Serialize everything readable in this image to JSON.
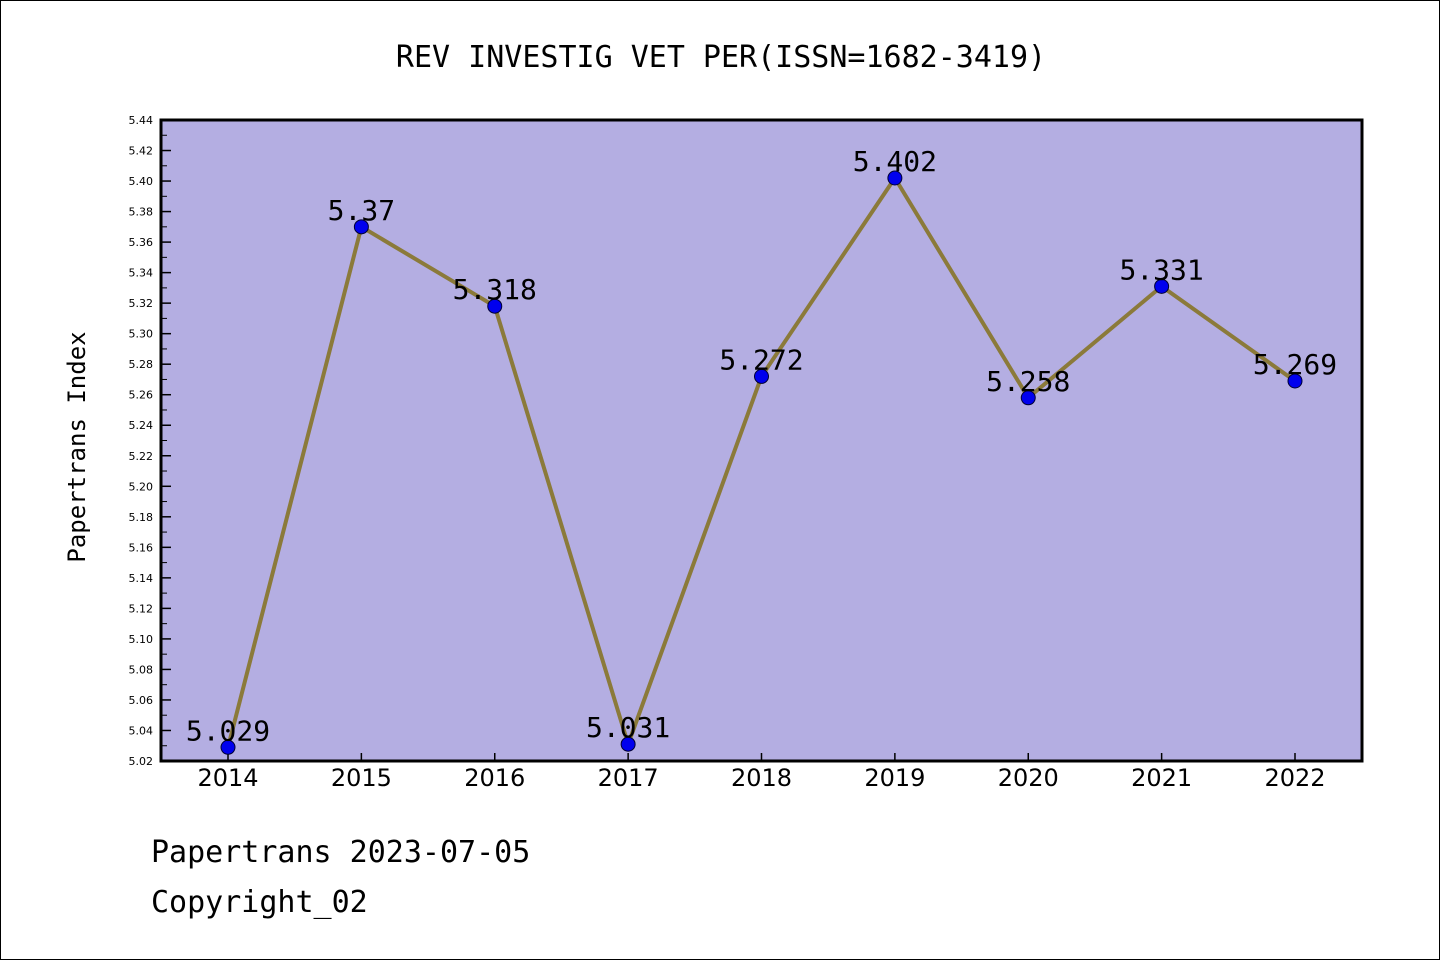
{
  "chart_data": {
    "type": "line",
    "title": "REV INVESTIG VET PER(ISSN=1682-3419)",
    "xlabel": "",
    "ylabel": "Papertrans Index",
    "categories": [
      "2014",
      "2015",
      "2016",
      "2017",
      "2018",
      "2019",
      "2020",
      "2021",
      "2022"
    ],
    "values": [
      5.029,
      5.37,
      5.318,
      5.031,
      5.272,
      5.402,
      5.258,
      5.331,
      5.269
    ],
    "data_labels": [
      "5.029",
      "5.37",
      "5.318",
      "5.031",
      "5.272",
      "5.402",
      "5.258",
      "5.331",
      "5.269"
    ],
    "ylim": [
      5.02,
      5.44
    ],
    "yticks": [
      "5.02",
      "5.04",
      "5.06",
      "5.08",
      "5.10",
      "5.12",
      "5.14",
      "5.16",
      "5.18",
      "5.20",
      "5.22",
      "5.24",
      "5.26",
      "5.28",
      "5.30",
      "5.32",
      "5.34",
      "5.36",
      "5.38",
      "5.40",
      "5.42",
      "5.44"
    ],
    "grid": false,
    "colors": {
      "plot_background": "#b4aee2",
      "line": "#8b7a3a",
      "marker": "#0000ee"
    }
  },
  "footer": {
    "date_line": "Papertrans 2023-07-05",
    "copyright_line": "Copyright_02"
  }
}
